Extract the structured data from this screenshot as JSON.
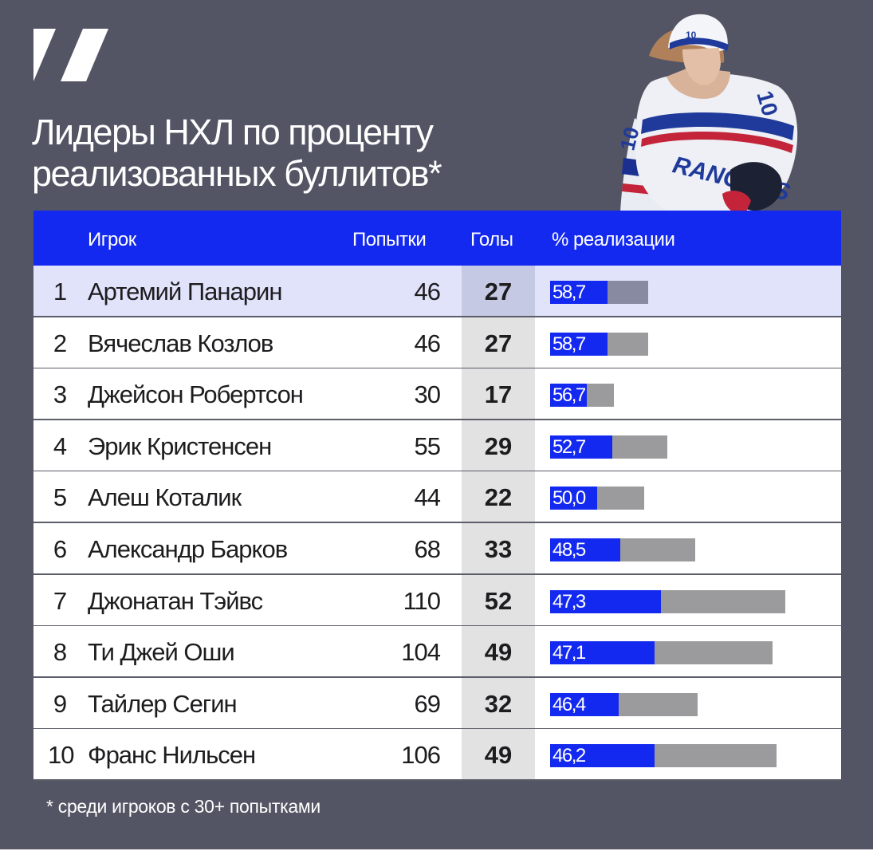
{
  "title": "Лидеры НХЛ по проценту\nреализованных буллитов*",
  "footnote": "* среди игроков с 30+ попытками",
  "colors": {
    "background": "#535564",
    "header": "#1429f0",
    "bar_blue": "#1429f0",
    "bar_grey": "#9b9b9d",
    "highlight_row": "#e1e3fb"
  },
  "table": {
    "headers": {
      "rank": "",
      "player": "Игрок",
      "attempts": "Попытки",
      "goals": "Голы",
      "pct": "% реализации"
    },
    "rows": [
      {
        "rank": "1",
        "player": "Артемий Панарин",
        "attempts": "46",
        "goals": "27",
        "pct_label": "58,7",
        "highlight": true
      },
      {
        "rank": "2",
        "player": "Вячеслав Козлов",
        "attempts": "46",
        "goals": "27",
        "pct_label": "58,7"
      },
      {
        "rank": "3",
        "player": "Джейсон Робертсон",
        "attempts": "30",
        "goals": "17",
        "pct_label": "56,7"
      },
      {
        "rank": "4",
        "player": "Эрик Кристенсен",
        "attempts": "55",
        "goals": "29",
        "pct_label": "52,7"
      },
      {
        "rank": "5",
        "player": "Алеш Коталик",
        "attempts": "44",
        "goals": "22",
        "pct_label": "50,0"
      },
      {
        "rank": "6",
        "player": "Александр Барков",
        "attempts": "68",
        "goals": "33",
        "pct_label": "48,5"
      },
      {
        "rank": "7",
        "player": "Джонатан Тэйвс",
        "attempts": "110",
        "goals": "52",
        "pct_label": "47,3"
      },
      {
        "rank": "8",
        "player": "Ти Джей Оши",
        "attempts": "104",
        "goals": "49",
        "pct_label": "47,1"
      },
      {
        "rank": "9",
        "player": "Тайлер Сегин",
        "attempts": "69",
        "goals": "32",
        "pct_label": "46,4"
      },
      {
        "rank": "10",
        "player": "Франс Нильсен",
        "attempts": "106",
        "goals": "49",
        "pct_label": "46,2"
      }
    ]
  },
  "chart_data": {
    "type": "bar",
    "title": "Лидеры НХЛ по проценту реализованных буллитов*",
    "categories": [
      "Артемий Панарин",
      "Вячеслав Козлов",
      "Джейсон Робертсон",
      "Эрик Кристенсен",
      "Алеш Коталик",
      "Александр Барков",
      "Джонатан Тэйвс",
      "Ти Джей Оши",
      "Тайлер Сегин",
      "Франс Нильсен"
    ],
    "series": [
      {
        "name": "Попытки",
        "values": [
          46,
          46,
          30,
          55,
          44,
          68,
          110,
          104,
          69,
          106
        ]
      },
      {
        "name": "Голы",
        "values": [
          27,
          27,
          17,
          29,
          22,
          33,
          52,
          49,
          32,
          49
        ]
      },
      {
        "name": "% реализации",
        "values": [
          58.7,
          58.7,
          56.7,
          52.7,
          50.0,
          48.5,
          47.3,
          47.1,
          46.4,
          46.2
        ]
      }
    ],
    "xlabel": "",
    "ylabel": ""
  }
}
